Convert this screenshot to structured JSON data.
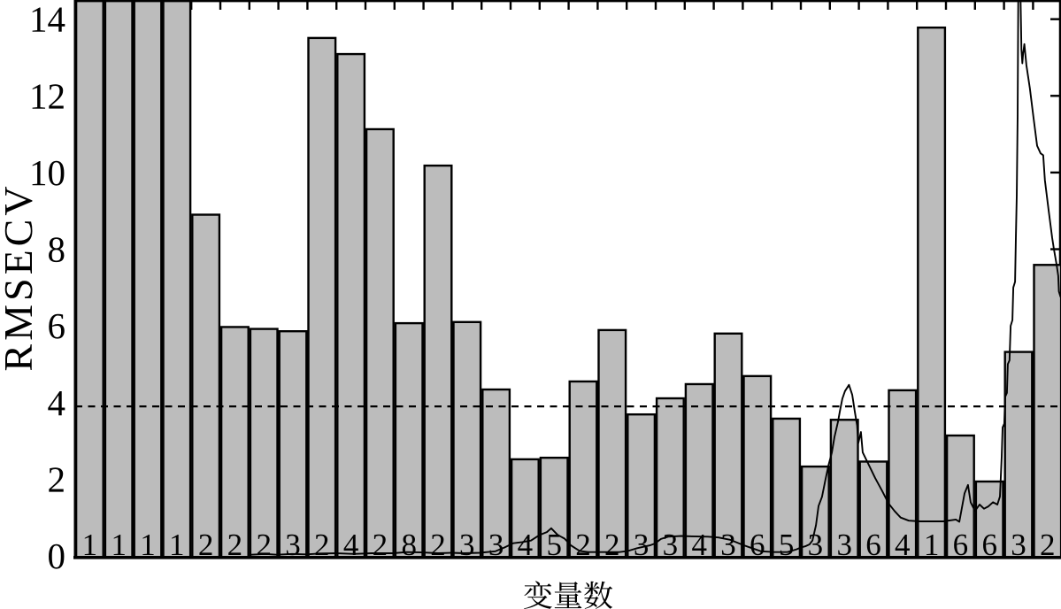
{
  "figure": {
    "background_color": "#ffffff",
    "ink_color": "#000000"
  },
  "chart_data": {
    "type": "bar+line",
    "title": "",
    "xlabel": "变量数",
    "ylabel": "RMSECV",
    "ylim": [
      0,
      14.5
    ],
    "yticks": [
      0,
      2,
      4,
      6,
      8,
      10,
      12,
      14
    ],
    "grid": false,
    "legend": "none",
    "background": "#ffffff",
    "bar_fill_color": "#bcbcbc",
    "bar_edge_color": "#000000",
    "line_color": "#000000",
    "bar_count": 34,
    "categories": [
      "1",
      "1",
      "1",
      "1",
      "2",
      "2",
      "2",
      "3",
      "2",
      "4",
      "2",
      "8",
      "2",
      "3",
      "3",
      "4",
      "5",
      "2",
      "2",
      "3",
      "3",
      "4",
      "3",
      "6",
      "5",
      "3",
      "3",
      "6",
      "4",
      "1",
      "6",
      "6",
      "3",
      "2"
    ],
    "values": [
      15.2,
      15.2,
      15.2,
      15.2,
      8.9,
      5.97,
      5.92,
      5.86,
      13.51,
      13.09,
      11.13,
      6.07,
      10.18,
      6.1,
      4.34,
      2.52,
      2.56,
      4.55,
      5.89,
      3.69,
      4.11,
      4.48,
      5.8,
      4.69,
      3.58,
      2.33,
      3.55,
      2.46,
      4.32,
      13.78,
      3.14,
      1.94,
      5.32,
      7.59
    ],
    "bars_clipped_at_ymax": [
      1,
      2,
      3,
      4
    ],
    "bar_value_labels_position": "inside-bottom",
    "threshold_line": {
      "value": 3.9,
      "style": "dashed"
    },
    "line_series": {
      "name": "rmsecv-trace",
      "x_units": "bar-index",
      "points": [
        [
          6.05,
          0.03
        ],
        [
          6.55,
          0.05
        ],
        [
          6.95,
          0.03
        ],
        [
          7.47,
          0.05
        ],
        [
          7.96,
          0.04
        ],
        [
          8.38,
          0.06
        ],
        [
          9.0,
          0.07
        ],
        [
          9.6,
          0.05
        ],
        [
          10.21,
          0.07
        ],
        [
          10.95,
          0.07
        ],
        [
          11.43,
          0.1
        ],
        [
          11.95,
          0.09
        ],
        [
          12.5,
          0.07
        ],
        [
          12.96,
          0.08
        ],
        [
          13.41,
          0.07
        ],
        [
          13.93,
          0.08
        ],
        [
          14.48,
          0.12
        ],
        [
          14.79,
          0.22
        ],
        [
          15.09,
          0.33
        ],
        [
          15.4,
          0.36
        ],
        [
          15.7,
          0.4
        ],
        [
          16.01,
          0.55
        ],
        [
          16.25,
          0.62
        ],
        [
          16.4,
          0.72
        ],
        [
          16.62,
          0.55
        ],
        [
          16.86,
          0.45
        ],
        [
          17.07,
          0.28
        ],
        [
          17.23,
          0.2
        ],
        [
          17.38,
          0.13
        ],
        [
          17.68,
          0.1
        ],
        [
          18.75,
          0.1
        ],
        [
          19.05,
          0.13
        ],
        [
          19.36,
          0.2
        ],
        [
          19.82,
          0.28
        ],
        [
          19.97,
          0.32
        ],
        [
          20.18,
          0.44
        ],
        [
          20.43,
          0.5
        ],
        [
          20.88,
          0.52
        ],
        [
          21.25,
          0.51
        ],
        [
          21.8,
          0.5
        ],
        [
          22.16,
          0.48
        ],
        [
          22.56,
          0.42
        ],
        [
          23.02,
          0.28
        ],
        [
          23.32,
          0.2
        ],
        [
          23.63,
          0.12
        ],
        [
          24.09,
          0.1
        ],
        [
          24.54,
          0.1
        ],
        [
          24.85,
          0.17
        ],
        [
          25.0,
          0.22
        ],
        [
          25.15,
          0.25
        ],
        [
          25.3,
          0.3
        ],
        [
          25.4,
          0.4
        ],
        [
          25.52,
          0.8
        ],
        [
          25.61,
          1.3
        ],
        [
          25.73,
          1.54
        ],
        [
          25.85,
          2.0
        ],
        [
          25.95,
          2.36
        ],
        [
          26.07,
          2.7
        ],
        [
          26.16,
          3.1
        ],
        [
          26.28,
          3.5
        ],
        [
          26.34,
          3.76
        ],
        [
          26.43,
          4.1
        ],
        [
          26.52,
          4.3
        ],
        [
          26.66,
          4.46
        ],
        [
          26.77,
          4.2
        ],
        [
          26.86,
          3.76
        ],
        [
          26.94,
          3.4
        ],
        [
          26.98,
          2.94
        ],
        [
          27.07,
          3.23
        ],
        [
          27.13,
          2.7
        ],
        [
          27.35,
          2.36
        ],
        [
          27.56,
          2.03
        ],
        [
          27.8,
          1.7
        ],
        [
          28.02,
          1.37
        ],
        [
          28.23,
          1.17
        ],
        [
          28.44,
          1.0
        ],
        [
          28.72,
          0.92
        ],
        [
          29.12,
          0.9
        ],
        [
          29.91,
          0.9
        ],
        [
          30.34,
          0.95
        ],
        [
          30.46,
          0.89
        ],
        [
          30.64,
          1.63
        ],
        [
          30.76,
          1.85
        ],
        [
          30.85,
          1.4
        ],
        [
          31.0,
          1.17
        ],
        [
          31.16,
          1.34
        ],
        [
          31.31,
          1.23
        ],
        [
          31.46,
          1.29
        ],
        [
          31.62,
          1.4
        ],
        [
          31.77,
          1.34
        ],
        [
          31.86,
          1.55
        ],
        [
          31.92,
          2.6
        ],
        [
          31.95,
          3.35
        ],
        [
          32.01,
          3.45
        ],
        [
          32.04,
          4.15
        ],
        [
          32.1,
          4.25
        ],
        [
          32.13,
          5.0
        ],
        [
          32.19,
          5.1
        ],
        [
          32.23,
          6.0
        ],
        [
          32.29,
          6.15
        ],
        [
          32.32,
          7.0
        ],
        [
          32.38,
          7.15
        ],
        [
          32.41,
          8.3
        ],
        [
          32.44,
          9.4
        ],
        [
          32.47,
          11.5
        ],
        [
          32.49,
          14.53
        ],
        [
          32.57,
          14.53
        ],
        [
          32.6,
          13.2
        ],
        [
          32.63,
          12.85
        ],
        [
          32.66,
          13.1
        ],
        [
          32.7,
          13.35
        ],
        [
          32.77,
          12.8
        ],
        [
          32.89,
          12.2
        ],
        [
          33.02,
          11.4
        ],
        [
          33.14,
          10.7
        ],
        [
          33.26,
          10.5
        ],
        [
          33.35,
          10.45
        ],
        [
          33.41,
          9.8
        ],
        [
          33.54,
          9.0
        ],
        [
          33.66,
          8.3
        ],
        [
          33.72,
          8.0
        ],
        [
          33.81,
          7.6
        ],
        [
          33.87,
          7.3
        ],
        [
          33.89,
          6.9
        ],
        [
          33.95,
          6.75
        ]
      ]
    }
  }
}
